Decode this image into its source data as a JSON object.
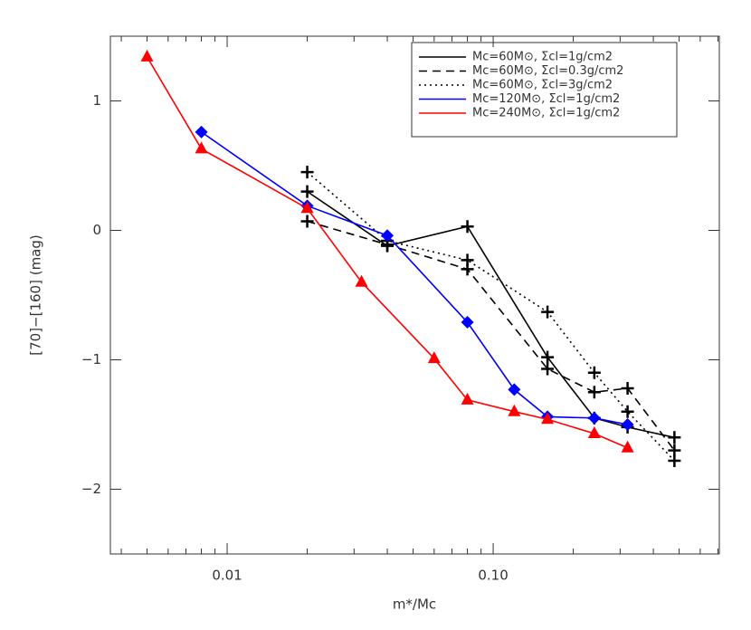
{
  "chart_data": {
    "type": "line",
    "xlabel": "m*/Mc",
    "ylabel": "[70]−[160] (mag)",
    "xscale": "log",
    "xlim": [
      0.00364,
      0.708
    ],
    "ylim": [
      -2.5,
      1.5
    ],
    "xticks": [
      0.01,
      {
        "value": 0.1,
        "label": "0.10"
      }
    ],
    "xminorticks": [
      0.004,
      0.005,
      0.006,
      0.007,
      0.008,
      0.009,
      0.02,
      0.03,
      0.04,
      0.05,
      0.06,
      0.07,
      0.08,
      0.09,
      0.2,
      0.3,
      0.4,
      0.5,
      0.6,
      0.7
    ],
    "yticks": [
      {
        "value": -2,
        "label": "−2"
      },
      {
        "value": -1,
        "label": "−1"
      },
      0,
      1
    ],
    "legend": "upper right",
    "series": [
      {
        "name": "Mc=60M⊙, Σcl=1g/cm2",
        "color": "#000000",
        "dash": "solid",
        "marker": "plus",
        "x": [
          0.02,
          0.04,
          0.08,
          0.16,
          0.24,
          0.32,
          0.48
        ],
        "values": [
          0.3,
          -0.12,
          0.03,
          -0.98,
          -1.45,
          -1.52,
          -1.6
        ]
      },
      {
        "name": "Mc=60M⊙, Σcl=0.3g/cm2",
        "color": "#000000",
        "dash": "dashed",
        "marker": "plus",
        "x": [
          0.02,
          0.04,
          0.08,
          0.16,
          0.24,
          0.32,
          0.48
        ],
        "values": [
          0.07,
          -0.11,
          -0.3,
          -1.07,
          -1.25,
          -1.22,
          -1.7
        ]
      },
      {
        "name": "Mc=60M⊙, Σcl=3g/cm2",
        "color": "#000000",
        "dash": "dotted",
        "marker": "plus",
        "x": [
          0.02,
          0.04,
          0.08,
          0.16,
          0.24,
          0.32,
          0.48
        ],
        "values": [
          0.45,
          -0.08,
          -0.23,
          -0.63,
          -1.1,
          -1.4,
          -1.78
        ]
      },
      {
        "name": "Mc=120M⊙, Σcl=1g/cm2",
        "color": "#0000ff",
        "dash": "solid",
        "marker": "diamond",
        "x": [
          0.008,
          0.02,
          0.04,
          0.08,
          0.12,
          0.16,
          0.24,
          0.32
        ],
        "values": [
          0.76,
          0.19,
          -0.04,
          -0.71,
          -1.23,
          -1.44,
          -1.45,
          -1.5
        ]
      },
      {
        "name": "Mc=240M⊙, Σcl=1g/cm2",
        "color": "#ff0000",
        "dash": "solid",
        "marker": "triangle",
        "x": [
          0.005,
          0.008,
          0.02,
          0.032,
          0.06,
          0.08,
          0.12,
          0.16,
          0.24,
          0.32
        ],
        "values": [
          1.34,
          0.63,
          0.17,
          -0.4,
          -0.99,
          -1.31,
          -1.4,
          -1.46,
          -1.57,
          -1.68
        ]
      }
    ]
  }
}
